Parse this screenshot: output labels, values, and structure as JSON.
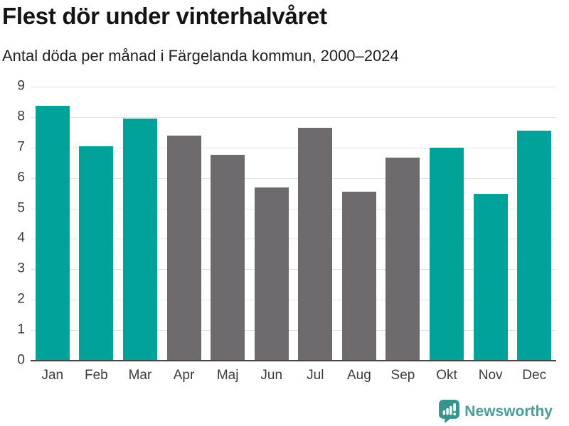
{
  "chart_data": {
    "type": "bar",
    "title": "Flest dör under vinterhalvåret",
    "subtitle": "Antal döda per månad i Färgelanda kommun, 2000–2024",
    "categories": [
      "Jan",
      "Feb",
      "Mar",
      "Apr",
      "Maj",
      "Jun",
      "Jul",
      "Aug",
      "Sep",
      "Okt",
      "Nov",
      "Dec"
    ],
    "values": [
      8.36,
      7.04,
      7.96,
      7.4,
      6.76,
      5.68,
      7.64,
      5.56,
      6.68,
      7.0,
      5.48,
      7.56
    ],
    "bar_colors": [
      "teal",
      "teal",
      "teal",
      "gray",
      "gray",
      "gray",
      "gray",
      "gray",
      "gray",
      "teal",
      "teal",
      "teal"
    ],
    "palette": {
      "teal": "#00a29a",
      "gray": "#6e6a6e"
    },
    "highlight_meaning": "winter half-year months in teal, summer half-year months in gray",
    "xlabel": "",
    "ylabel": "",
    "ylim": [
      0,
      9
    ],
    "yticks": [
      0,
      1,
      2,
      3,
      4,
      5,
      6,
      7,
      8,
      9
    ],
    "grid": "horizontal",
    "legend": "none",
    "axis_color": "#474747",
    "gridline_color": "#e3e3e3"
  },
  "footer": {
    "brand": "Newsworthy",
    "logo_icon": "newsworthy-speech-bubble-bar-chart-icon",
    "logo_color": "#37938d",
    "brand_text_color": "#4b9b97"
  }
}
